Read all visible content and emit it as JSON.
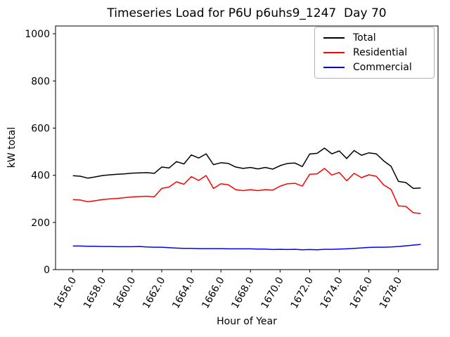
{
  "chart_data": {
    "type": "line",
    "title": "Timeseries Load for P6U p6uhs9_1247  Day 70",
    "xlabel": "Hour of Year",
    "ylabel": "kW total",
    "x": [
      1656.0,
      1656.5,
      1657.0,
      1657.5,
      1658.0,
      1658.5,
      1659.0,
      1659.5,
      1660.0,
      1660.5,
      1661.0,
      1661.5,
      1662.0,
      1662.5,
      1663.0,
      1663.5,
      1664.0,
      1664.5,
      1665.0,
      1665.5,
      1666.0,
      1666.5,
      1667.0,
      1667.5,
      1668.0,
      1668.5,
      1669.0,
      1669.5,
      1670.0,
      1670.5,
      1671.0,
      1671.5,
      1672.0,
      1672.5,
      1673.0,
      1673.5,
      1674.0,
      1674.5,
      1675.0,
      1675.5,
      1676.0,
      1676.5,
      1677.0,
      1677.5,
      1678.0,
      1678.5,
      1679.0,
      1679.5
    ],
    "series": [
      {
        "name": "Total",
        "color": "#000000",
        "values": [
          398,
          396,
          388,
          393,
          399,
          402,
          404,
          406,
          409,
          410,
          411,
          408,
          435,
          431,
          458,
          448,
          486,
          473,
          491,
          445,
          453,
          450,
          435,
          429,
          433,
          427,
          433,
          426,
          441,
          450,
          452,
          437,
          490,
          493,
          515,
          491,
          503,
          471,
          505,
          485,
          495,
          491,
          461,
          438,
          374,
          369,
          344,
          346
        ]
      },
      {
        "name": "Residential",
        "color": "#ff0000",
        "values": [
          297,
          295,
          288,
          292,
          297,
          300,
          302,
          305,
          308,
          310,
          311,
          309,
          344,
          350,
          372,
          362,
          394,
          378,
          399,
          344,
          364,
          360,
          339,
          335,
          339,
          335,
          339,
          337,
          354,
          364,
          366,
          354,
          404,
          406,
          429,
          401,
          412,
          377,
          408,
          390,
          402,
          396,
          359,
          340,
          270,
          268,
          241,
          238
        ]
      },
      {
        "name": "Commercial",
        "color": "#0000ff",
        "values": [
          100,
          100,
          99,
          99,
          98,
          98,
          97,
          97,
          97,
          98,
          96,
          95,
          95,
          93,
          91,
          90,
          90,
          89,
          89,
          89,
          89,
          88,
          88,
          88,
          88,
          87,
          87,
          85,
          86,
          85,
          86,
          84,
          85,
          84,
          86,
          86,
          87,
          88,
          90,
          92,
          94,
          95,
          95,
          96,
          98,
          101,
          104,
          107
        ]
      }
    ],
    "xticks": [
      1656,
      1658,
      1660,
      1662,
      1664,
      1666,
      1668,
      1670,
      1672,
      1674,
      1676,
      1678
    ],
    "xtick_labels": [
      "1656.0",
      "1658.0",
      "1660.0",
      "1662.0",
      "1664.0",
      "1666.0",
      "1668.0",
      "1670.0",
      "1672.0",
      "1674.0",
      "1676.0",
      "1678.0"
    ],
    "yticks": [
      0,
      200,
      400,
      600,
      800,
      1000
    ],
    "ytick_labels": [
      "0",
      "200",
      "400",
      "600",
      "800",
      "1000"
    ],
    "xlim": [
      1654.825,
      1680.675
    ],
    "ylim": [
      0,
      1033
    ],
    "grid": false,
    "legend_position": "upper right",
    "x_tick_rotation": 60
  }
}
